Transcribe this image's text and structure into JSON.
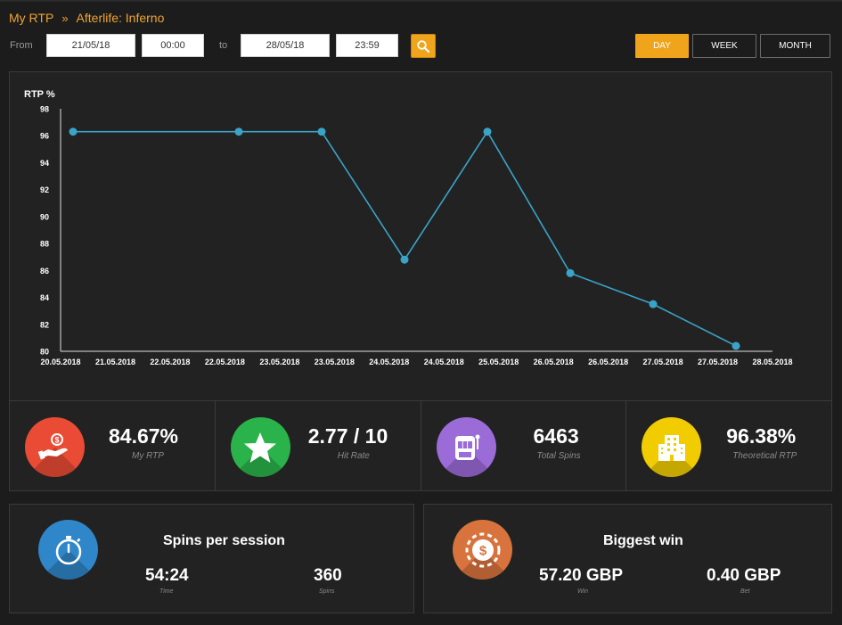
{
  "breadcrumb": {
    "root": "My RTP",
    "separator": "»",
    "current": "Afterlife: Inferno"
  },
  "filters": {
    "from_label": "From",
    "from_date": "21/05/18",
    "from_time": "00:00",
    "to_label": "to",
    "to_date": "28/05/18",
    "to_time": "23:59",
    "search_icon": "search-icon",
    "periods": {
      "day": "DAY",
      "week": "WEEK",
      "month": "MONTH"
    },
    "active_period": "day"
  },
  "colors": {
    "accent": "#f0a41c",
    "line": "#3aa3c8",
    "my_rtp": "#e94b35",
    "hit_rate": "#2ab34a",
    "total_spins": "#9b6bd8",
    "theoretical_rtp": "#f0cc00",
    "spins_per_session": "#2f86c8",
    "biggest_win": "#d8733e"
  },
  "chart_data": {
    "type": "line",
    "ylabel": "RTP %",
    "ylim": [
      80,
      98
    ],
    "yticks": [
      80,
      82,
      84,
      86,
      88,
      90,
      92,
      94,
      96,
      98
    ],
    "xtick_labels": [
      "20.05.2018",
      "21.05.2018",
      "22.05.2018",
      "22.05.2018",
      "23.05.2018",
      "23.05.2018",
      "24.05.2018",
      "24.05.2018",
      "25.05.2018",
      "26.05.2018",
      "26.05.2018",
      "27.05.2018",
      "27.05.2018",
      "28.05.2018"
    ],
    "series": [
      {
        "points": [
          {
            "x": "20.05.2018",
            "y": 96.3
          },
          {
            "x": "22.05.2018",
            "y": 96.3
          },
          {
            "x": "23.05.2018",
            "y": 96.3
          },
          {
            "x": "24.05.2018",
            "y": 86.8
          },
          {
            "x": "25.05.2018",
            "y": 96.3
          },
          {
            "x": "26.05.2018",
            "y": 85.8
          },
          {
            "x": "27.05.2018",
            "y": 83.5
          },
          {
            "x": "28.05.2018",
            "y": 80.4
          }
        ]
      }
    ],
    "grid": false,
    "legend": "none"
  },
  "stats": {
    "my_rtp": {
      "value": "84.67%",
      "label": "My RTP",
      "icon": "money-hand-icon"
    },
    "hit_rate": {
      "value": "2.77 / 10",
      "label": "Hit Rate",
      "icon": "star-icon"
    },
    "total_spins": {
      "value": "6463",
      "label": "Total Spins",
      "icon": "slot-machine-icon"
    },
    "theoretical_rtp": {
      "value": "96.38%",
      "label": "Theoretical RTP",
      "icon": "building-icon"
    }
  },
  "spins_per_session": {
    "title": "Spins per session",
    "icon": "stopwatch-icon",
    "time_value": "54:24",
    "time_label": "Time",
    "spins_value": "360",
    "spins_label": "Spins"
  },
  "biggest_win": {
    "title": "Biggest win",
    "icon": "casino-chip-icon",
    "win_value": "57.20 GBP",
    "win_label": "Win",
    "bet_value": "0.40 GBP",
    "bet_label": "Bet"
  }
}
